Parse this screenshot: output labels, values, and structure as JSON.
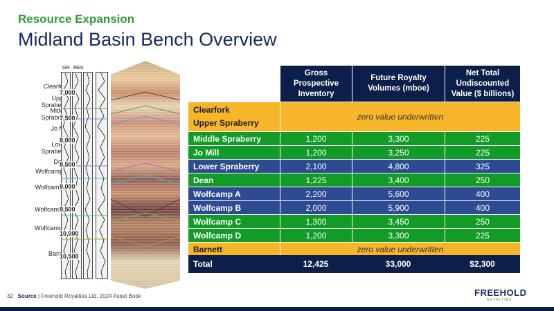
{
  "header": {
    "subtitle": "Resource Expansion",
    "title": "Midland Basin Bench Overview"
  },
  "log": {
    "col_gr": "GR",
    "col_res": "RES",
    "benches": [
      "Clearfork",
      "Upper Spraberry",
      "Middle Spraberry",
      "Jo Mill",
      "Lower Spraberry",
      "Dean",
      "Wolfcamp A",
      "Wolfcamp B",
      "Wolfcamp C",
      "Wolfcamp D",
      "Barnett"
    ],
    "depths": [
      "7,000",
      "7,500",
      "8,000",
      "8,500",
      "9,000",
      "9,500",
      "10,000",
      "10,500"
    ]
  },
  "table": {
    "headers": [
      "Gross Prospective Inventory",
      "Future Royalty Volumes (mboe)",
      "Net Total Undiscounted Value ($ billions)"
    ],
    "top_group": {
      "names": [
        "Clearfork",
        "Upper Spraberry"
      ],
      "note": "zero value underwritten"
    },
    "rows": [
      {
        "name": "Middle Spraberry",
        "inventory": "1,200",
        "volumes": "3,300",
        "value": "225",
        "color": "green"
      },
      {
        "name": "Jo Mill",
        "inventory": "1,200",
        "volumes": "3,250",
        "value": "225",
        "color": "green"
      },
      {
        "name": "Lower Spraberry",
        "inventory": "2,100",
        "volumes": "4,800",
        "value": "325",
        "color": "blue"
      },
      {
        "name": "Dean",
        "inventory": "1,225",
        "volumes": "3,400",
        "value": "250",
        "color": "green"
      },
      {
        "name": "Wolfcamp A",
        "inventory": "2,200",
        "volumes": "5,600",
        "value": "400",
        "color": "blue"
      },
      {
        "name": "Wolfcamp B",
        "inventory": "2,000",
        "volumes": "5,900",
        "value": "400",
        "color": "blue"
      },
      {
        "name": "Wolfcamp C",
        "inventory": "1,300",
        "volumes": "3,450",
        "value": "250",
        "color": "green"
      },
      {
        "name": "Wolfcamp D",
        "inventory": "1,200",
        "volumes": "3,300",
        "value": "225",
        "color": "green"
      }
    ],
    "bottom_group": {
      "name": "Barnett",
      "note": "zero value underwritten"
    },
    "total": {
      "name": "Total",
      "inventory": "12,425",
      "volumes": "33,000",
      "value": "$2,300"
    }
  },
  "footer": {
    "page": "32",
    "source_label": "Source",
    "source_text": "| Freehold Royalties Ltd. 2024 Asset Book"
  },
  "logo": {
    "name": "FREEHOLD",
    "sub": "ROYALTIES"
  }
}
